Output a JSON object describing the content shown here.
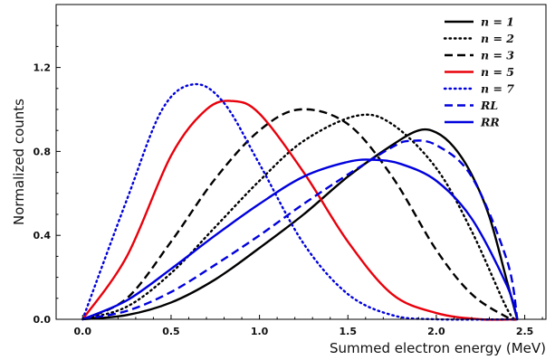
{
  "chart_data": {
    "type": "line",
    "title": "",
    "xlabel": "Summed electron energy (MeV)",
    "ylabel": "Normalized counts",
    "xlim": [
      -0.15,
      2.62
    ],
    "ylim": [
      0,
      1.5
    ],
    "xticks": [
      "0.0",
      "0.5",
      "1.0",
      "1.5",
      "2.0",
      "2.5"
    ],
    "yticks": [
      "0.0",
      "0.4",
      "0.8",
      "1.2"
    ],
    "grid": false,
    "legend_position": "top-right",
    "series": [
      {
        "name": "n = 1",
        "color": "#000000",
        "style": "solid",
        "x": [
          0.0,
          0.25,
          0.5,
          0.75,
          1.0,
          1.25,
          1.5,
          1.75,
          1.9,
          2.0,
          2.1,
          2.2,
          2.3,
          2.4,
          2.458
        ],
        "y": [
          0.0,
          0.02,
          0.08,
          0.19,
          0.34,
          0.5,
          0.68,
          0.83,
          0.9,
          0.89,
          0.82,
          0.69,
          0.49,
          0.18,
          0.0
        ]
      },
      {
        "name": "n = 2",
        "color": "#000000",
        "style": "dotted",
        "x": [
          0.0,
          0.25,
          0.5,
          0.75,
          1.0,
          1.25,
          1.55,
          1.75,
          2.0,
          2.2,
          2.4,
          2.458
        ],
        "y": [
          0.0,
          0.06,
          0.22,
          0.44,
          0.66,
          0.85,
          0.97,
          0.93,
          0.72,
          0.42,
          0.05,
          0.0
        ]
      },
      {
        "name": "n = 3",
        "color": "#000000",
        "style": "dashed",
        "x": [
          0.0,
          0.25,
          0.5,
          0.75,
          1.0,
          1.23,
          1.5,
          1.75,
          2.0,
          2.2,
          2.4,
          2.458
        ],
        "y": [
          0.0,
          0.1,
          0.37,
          0.67,
          0.9,
          1.0,
          0.93,
          0.68,
          0.33,
          0.12,
          0.01,
          0.0
        ]
      },
      {
        "name": "n = 5",
        "color": "#e8000b",
        "style": "solid",
        "x": [
          0.0,
          0.25,
          0.5,
          0.7,
          0.85,
          1.0,
          1.25,
          1.5,
          1.75,
          2.0,
          2.25,
          2.458
        ],
        "y": [
          0.0,
          0.3,
          0.78,
          1.0,
          1.04,
          0.98,
          0.7,
          0.37,
          0.12,
          0.03,
          0.0,
          0.0
        ]
      },
      {
        "name": "n = 7",
        "color": "#0000dd",
        "style": "dotted",
        "x": [
          0.0,
          0.25,
          0.45,
          0.63,
          0.8,
          1.0,
          1.25,
          1.5,
          1.75,
          2.0,
          2.458
        ],
        "y": [
          0.0,
          0.57,
          1.0,
          1.12,
          1.03,
          0.74,
          0.36,
          0.12,
          0.02,
          0.0,
          0.0
        ]
      },
      {
        "name": "RL",
        "color": "#0000dd",
        "style": "dashed",
        "x": [
          0.0,
          0.25,
          0.5,
          0.75,
          1.0,
          1.25,
          1.5,
          1.75,
          1.85,
          2.0,
          2.2,
          2.4,
          2.458
        ],
        "y": [
          0.0,
          0.04,
          0.13,
          0.26,
          0.4,
          0.55,
          0.69,
          0.82,
          0.85,
          0.83,
          0.68,
          0.28,
          0.0
        ]
      },
      {
        "name": "RR",
        "color": "#0000dd",
        "style": "solid",
        "x": [
          0.0,
          0.25,
          0.5,
          0.75,
          1.0,
          1.25,
          1.5,
          1.65,
          1.8,
          2.0,
          2.2,
          2.4,
          2.458
        ],
        "y": [
          0.0,
          0.09,
          0.24,
          0.4,
          0.55,
          0.68,
          0.75,
          0.76,
          0.74,
          0.66,
          0.48,
          0.16,
          0.0
        ]
      }
    ]
  }
}
